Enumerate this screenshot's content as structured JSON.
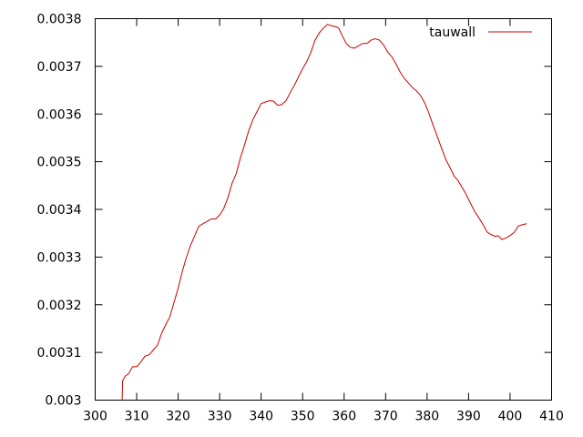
{
  "chart_data": {
    "type": "line",
    "title": "",
    "xlabel": "",
    "ylabel": "",
    "xlim": [
      300,
      410
    ],
    "ylim": [
      0.003,
      0.0038
    ],
    "x_ticks": [
      "300",
      "310",
      "320",
      "330",
      "340",
      "350",
      "360",
      "370",
      "380",
      "390",
      "400",
      "410"
    ],
    "y_ticks": [
      "0.003",
      "0.0031",
      "0.0032",
      "0.0033",
      "0.0034",
      "0.0035",
      "0.0036",
      "0.0037",
      "0.0038"
    ],
    "grid": false,
    "legend_position": "top-right",
    "series": [
      {
        "name": "tauwall",
        "color": "#cc0000",
        "points": [
          [
            306.5,
            0.003
          ],
          [
            306.6,
            0.00304
          ],
          [
            307.2,
            0.00305
          ],
          [
            308.0,
            0.003055
          ],
          [
            309.0,
            0.00307
          ],
          [
            310.0,
            0.00307
          ],
          [
            311.0,
            0.00308
          ],
          [
            312.0,
            0.003092
          ],
          [
            313.0,
            0.003095
          ],
          [
            314.0,
            0.003105
          ],
          [
            315.0,
            0.003115
          ],
          [
            316.0,
            0.00314
          ],
          [
            317.0,
            0.003158
          ],
          [
            318.0,
            0.003175
          ],
          [
            319.0,
            0.003205
          ],
          [
            320.0,
            0.003235
          ],
          [
            321.0,
            0.00327
          ],
          [
            322.0,
            0.0033
          ],
          [
            323.0,
            0.003325
          ],
          [
            324.0,
            0.003345
          ],
          [
            325.0,
            0.003365
          ],
          [
            326.0,
            0.00337
          ],
          [
            327.0,
            0.003375
          ],
          [
            328.0,
            0.00338
          ],
          [
            329.0,
            0.00338
          ],
          [
            330.0,
            0.003388
          ],
          [
            331.0,
            0.003402
          ],
          [
            332.0,
            0.003425
          ],
          [
            333.0,
            0.003455
          ],
          [
            334.0,
            0.003475
          ],
          [
            335.0,
            0.003508
          ],
          [
            336.0,
            0.003535
          ],
          [
            337.0,
            0.003565
          ],
          [
            338.0,
            0.003588
          ],
          [
            339.0,
            0.003605
          ],
          [
            340.0,
            0.003622
          ],
          [
            341.0,
            0.003625
          ],
          [
            342.0,
            0.003628
          ],
          [
            343.0,
            0.003627
          ],
          [
            344.0,
            0.003618
          ],
          [
            345.0,
            0.00362
          ],
          [
            346.0,
            0.003628
          ],
          [
            347.0,
            0.003645
          ],
          [
            348.0,
            0.00366
          ],
          [
            349.0,
            0.003678
          ],
          [
            350.0,
            0.003695
          ],
          [
            351.0,
            0.00371
          ],
          [
            352.0,
            0.00373
          ],
          [
            353.0,
            0.003755
          ],
          [
            354.0,
            0.00377
          ],
          [
            355.0,
            0.00378
          ],
          [
            356.0,
            0.003788
          ],
          [
            357.0,
            0.003785
          ],
          [
            358.0,
            0.003783
          ],
          [
            358.7,
            0.00378
          ],
          [
            359.5,
            0.003765
          ],
          [
            360.5,
            0.003748
          ],
          [
            361.5,
            0.00374
          ],
          [
            362.5,
            0.003738
          ],
          [
            363.5,
            0.003743
          ],
          [
            364.5,
            0.003748
          ],
          [
            365.5,
            0.003748
          ],
          [
            366.5,
            0.003755
          ],
          [
            367.5,
            0.003758
          ],
          [
            368.5,
            0.003755
          ],
          [
            369.5,
            0.003745
          ],
          [
            370.5,
            0.00373
          ],
          [
            371.5,
            0.00372
          ],
          [
            372.5,
            0.003705
          ],
          [
            373.5,
            0.003688
          ],
          [
            374.5,
            0.003675
          ],
          [
            375.5,
            0.003665
          ],
          [
            376.5,
            0.003655
          ],
          [
            377.5,
            0.003648
          ],
          [
            378.5,
            0.003638
          ],
          [
            379.5,
            0.003622
          ],
          [
            380.5,
            0.0036
          ],
          [
            381.5,
            0.003575
          ],
          [
            382.5,
            0.003552
          ],
          [
            383.5,
            0.003528
          ],
          [
            384.5,
            0.003505
          ],
          [
            385.5,
            0.003488
          ],
          [
            386.5,
            0.00347
          ],
          [
            387.5,
            0.00346
          ],
          [
            388.5,
            0.003445
          ],
          [
            389.5,
            0.00343
          ],
          [
            390.5,
            0.003412
          ],
          [
            391.5,
            0.003395
          ],
          [
            392.5,
            0.003382
          ],
          [
            393.5,
            0.003368
          ],
          [
            394.5,
            0.003352
          ],
          [
            395.5,
            0.003347
          ],
          [
            396.5,
            0.003343
          ],
          [
            397.0,
            0.003345
          ],
          [
            397.5,
            0.003342
          ],
          [
            398.0,
            0.003337
          ],
          [
            399.0,
            0.00334
          ],
          [
            400.0,
            0.003345
          ],
          [
            401.0,
            0.003352
          ],
          [
            402.0,
            0.003365
          ],
          [
            403.0,
            0.003368
          ],
          [
            404.0,
            0.00337
          ]
        ]
      }
    ]
  }
}
